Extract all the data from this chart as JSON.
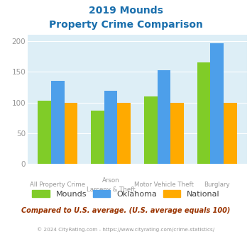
{
  "title_line1": "2019 Mounds",
  "title_line2": "Property Crime Comparison",
  "cat_labels_top": [
    "All Property Crime",
    "Arson",
    "Motor Vehicle Theft",
    "Burglary"
  ],
  "cat_labels_bot": [
    "",
    "Larceny & Theft",
    "",
    ""
  ],
  "series": {
    "Mounds": [
      103,
      87,
      110,
      165
    ],
    "Oklahoma": [
      135,
      119,
      153,
      197
    ],
    "National": [
      100,
      100,
      100,
      100
    ]
  },
  "colors": {
    "Mounds": "#80cc28",
    "Oklahoma": "#4d9fea",
    "National": "#ffaa00"
  },
  "ylim": [
    0,
    210
  ],
  "yticks": [
    0,
    50,
    100,
    150,
    200
  ],
  "plot_bg": "#ddeef6",
  "title_color": "#1a6fad",
  "tick_label_color": "#999999",
  "footer_note": "Compared to U.S. average. (U.S. average equals 100)",
  "footer_note_color": "#993300",
  "copyright": "© 2024 CityRating.com - https://www.cityrating.com/crime-statistics/",
  "copyright_color": "#999999",
  "legend_labels": [
    "Mounds",
    "Oklahoma",
    "National"
  ]
}
